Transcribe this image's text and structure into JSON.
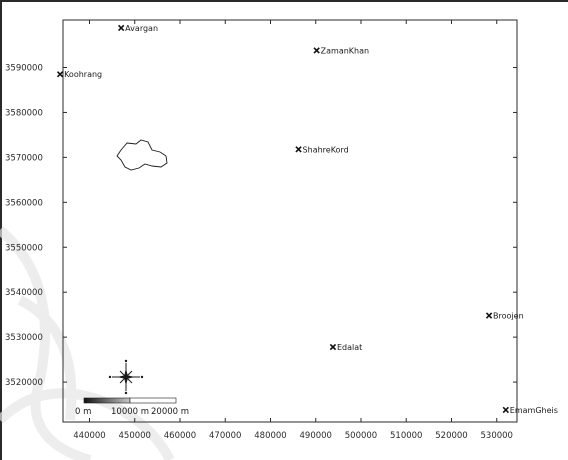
{
  "map": {
    "x_ticks": [
      "440000",
      "450000",
      "460000",
      "470000",
      "480000",
      "490000",
      "500000",
      "510000",
      "520000",
      "530000"
    ],
    "y_ticks": [
      "3590000",
      "3580000",
      "3570000",
      "3560000",
      "3550000",
      "3540000",
      "3530000",
      "3520000"
    ],
    "places": [
      {
        "key": "avargan",
        "name": "Avargan",
        "x": 447000,
        "y": 3598800
      },
      {
        "key": "zamankhan",
        "name": "ZamanKhan",
        "x": 490200,
        "y": 3593800
      },
      {
        "key": "koohrang",
        "name": "Koohrang",
        "x": 433500,
        "y": 3588500
      },
      {
        "key": "shahrekord",
        "name": "ShahreKord",
        "x": 486200,
        "y": 3571800
      },
      {
        "key": "broojen",
        "name": "Broojen",
        "x": 528300,
        "y": 3534800
      },
      {
        "key": "edalat",
        "name": "Edalat",
        "x": 493800,
        "y": 3527800
      },
      {
        "key": "emamgheis",
        "name": "EmamGheis",
        "x": 532000,
        "y": 3513800
      }
    ],
    "scale_bar": {
      "labels": [
        "0 m",
        "10000 m",
        "20000 m"
      ]
    },
    "colors": {
      "frame": "#2a2a2a",
      "ink": "#1a1a1a",
      "watermark": "#e6e6e6"
    }
  }
}
